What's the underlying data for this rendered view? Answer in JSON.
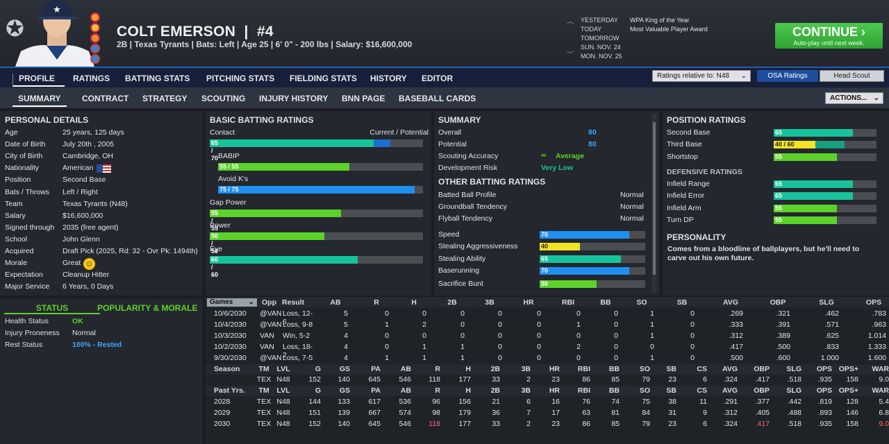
{
  "player": {
    "name": "COLT EMERSON",
    "number": "#4",
    "info": "2B | Texas Tyrants | Bats: Left | Age 25 | 6' 0\" - 200 lbs | Salary: $16,600,000"
  },
  "calendar": {
    "dates": [
      "YESTERDAY",
      "TODAY",
      "TOMORROW",
      "SUN. NOV. 24",
      "MON. NOV. 25"
    ],
    "awards": [
      "WPA King of the Year",
      "Most Valuable Player Award"
    ]
  },
  "continue": {
    "label": "CONTINUE",
    "sub": "Auto-play until next week."
  },
  "nav1": [
    "PROFILE",
    "RATINGS",
    "BATTING STATS",
    "PITCHING STATS",
    "FIELDING STATS",
    "HISTORY",
    "EDITOR"
  ],
  "ratings_relative": "Ratings relative to: N48",
  "osa": "OSA Ratings",
  "scout": "Head Scout",
  "nav2": [
    "SUMMARY",
    "CONTRACT",
    "STRATEGY",
    "SCOUTING",
    "INJURY HISTORY",
    "BNN PAGE",
    "BASEBALL CARDS"
  ],
  "actions": "ACTIONS...",
  "personal": {
    "title": "PERSONAL DETAILS",
    "rows": [
      [
        "Age",
        "25 years, 125 days"
      ],
      [
        "Date of Birth",
        "July 20th , 2005"
      ],
      [
        "City of Birth",
        "Cambridge, OH"
      ],
      [
        "Nationality",
        "American"
      ],
      [
        "Position",
        "Second Base"
      ],
      [
        "Bats / Throws",
        "Left / Right"
      ],
      [
        "Team",
        "Texas Tyrants (N48)"
      ],
      [
        "Salary",
        "$16,600,000"
      ],
      [
        "Signed through",
        "2035 (free agent)"
      ],
      [
        "School",
        "John Glenn"
      ],
      [
        "Acquired",
        "Draft Pick (2025, Rd: 32 - Ovr Pk: 1494th)"
      ],
      [
        "Morale",
        "Great"
      ],
      [
        "Expectation",
        "Cleanup Hitter"
      ],
      [
        "Major Service",
        "6 Years, 0 Days"
      ]
    ]
  },
  "status": {
    "tab1": "STATUS",
    "tab2": "POPULARITY & MORALE",
    "rows": [
      [
        "Health Status",
        "OK"
      ],
      [
        "Injury Proneness",
        "Normal"
      ],
      [
        "Rest Status",
        "100% - Rested"
      ]
    ]
  },
  "batting": {
    "title": "BASIC BATTING RATINGS",
    "cp": "Current / Potential",
    "rows": [
      {
        "label": "Contact",
        "val": "65 / 70",
        "cur": 65,
        "pot": 70,
        "color": "teal",
        "indent": false
      },
      {
        "label": "BABIP",
        "val": "55 / 55",
        "cur": 55,
        "pot": 55,
        "color": "green",
        "indent": true
      },
      {
        "label": "Avoid K's",
        "val": "75 / 75",
        "cur": 75,
        "pot": 75,
        "color": "blue",
        "indent": true
      },
      {
        "label": "Gap Power",
        "val": "55 / 55",
        "cur": 55,
        "pot": 55,
        "color": "green",
        "indent": false
      },
      {
        "label": "Power",
        "val": "50 / 50",
        "cur": 50,
        "pot": 50,
        "color": "green",
        "indent": false
      },
      {
        "label": "Eye",
        "val": "60 / 60",
        "cur": 60,
        "pot": 60,
        "color": "teal",
        "indent": false
      }
    ]
  },
  "summary": {
    "title": "SUMMARY",
    "overall_l": "Overall",
    "overall": "80",
    "potential_l": "Potential",
    "potential": "80",
    "scout_l": "Scouting Accuracy",
    "scout": "Average",
    "dev_l": "Development Risk",
    "dev": "Very Low"
  },
  "other": {
    "title": "OTHER BATTING RATINGS",
    "text": [
      [
        "Batted Ball Profile",
        "Normal"
      ],
      [
        "Groundball Tendency",
        "Normal"
      ],
      [
        "Flyball Tendency",
        "Normal"
      ]
    ],
    "bars": [
      {
        "label": "Speed",
        "val": "70",
        "v": 70,
        "color": "blue"
      },
      {
        "label": "Stealing Aggressiveness",
        "val": "40",
        "v": 40,
        "color": "yellow"
      },
      {
        "label": "Stealing Ability",
        "val": "65",
        "v": 65,
        "color": "teal"
      },
      {
        "label": "Baserunning",
        "val": "70",
        "v": 70,
        "color": "blue"
      },
      {
        "label": "Sacrifice Bunt",
        "val": "50",
        "v": 50,
        "color": "green"
      }
    ]
  },
  "position": {
    "title": "POSITION RATINGS",
    "rows": [
      {
        "label": "Second Base",
        "val": "65",
        "cur": 65,
        "pot": 65,
        "color": "teal"
      },
      {
        "label": "Third Base",
        "val": "40 / 60",
        "cur": 40,
        "pot": 60,
        "color": "yellow"
      },
      {
        "label": "Shortstop",
        "val": "55",
        "cur": 55,
        "pot": 55,
        "color": "green"
      }
    ]
  },
  "defense": {
    "title": "DEFENSIVE RATINGS",
    "rows": [
      {
        "label": "Infield Range",
        "val": "65",
        "v": 65,
        "color": "teal"
      },
      {
        "label": "Infield Error",
        "val": "65",
        "v": 65,
        "color": "teal"
      },
      {
        "label": "Infield Arm",
        "val": "55",
        "v": 55,
        "color": "green"
      },
      {
        "label": "Turn DP",
        "val": "55",
        "v": 55,
        "color": "green"
      }
    ]
  },
  "personality": {
    "title": "PERSONALITY",
    "text": "Comes from a bloodline of ballplayers, but he'll need to carve out his own future."
  },
  "games": {
    "dropdown": "Games",
    "headers": [
      "Opp",
      "Result",
      "AB",
      "R",
      "H",
      "2B",
      "3B",
      "HR",
      "RBI",
      "BB",
      "SO",
      "SB",
      "AVG",
      "OBP",
      "SLG",
      "OPS"
    ],
    "rows": [
      [
        "10/6/2030",
        "@VAN",
        "Loss, 12-6",
        "5",
        "0",
        "0",
        "0",
        "0",
        "0",
        "0",
        "0",
        "1",
        "0",
        ".269",
        ".321",
        ".462",
        ".783"
      ],
      [
        "10/4/2030",
        "@VAN",
        "Loss, 9-8",
        "5",
        "1",
        "2",
        "0",
        "0",
        "0",
        "1",
        "0",
        "1",
        "0",
        ".333",
        ".391",
        ".571",
        ".963"
      ],
      [
        "10/3/2030",
        "VAN",
        "Win, 5-2",
        "4",
        "0",
        "0",
        "0",
        "0",
        "0",
        "0",
        "0",
        "1",
        "0",
        ".312",
        ".389",
        ".625",
        "1.014"
      ],
      [
        "10/2/2030",
        "VAN",
        "Loss, 18-2",
        "4",
        "0",
        "1",
        "1",
        "0",
        "0",
        "2",
        "0",
        "0",
        "0",
        ".417",
        ".500",
        ".833",
        "1.333"
      ],
      [
        "9/30/2030",
        "@VAN",
        "Loss, 7-5",
        "4",
        "1",
        "1",
        "1",
        "0",
        "0",
        "0",
        "0",
        "1",
        "0",
        ".500",
        ".600",
        "1.000",
        "1.600"
      ]
    ]
  },
  "season": {
    "headers": [
      "Season",
      "TM",
      "LVL",
      "G",
      "GS",
      "PA",
      "AB",
      "R",
      "H",
      "2B",
      "3B",
      "HR",
      "RBI",
      "BB",
      "SO",
      "SB",
      "CS",
      "AVG",
      "OBP",
      "SLG",
      "OPS",
      "OPS+",
      "WAR"
    ],
    "row": [
      "",
      "TEX",
      "N48",
      "152",
      "140",
      "645",
      "546",
      "118",
      "177",
      "33",
      "2",
      "23",
      "86",
      "85",
      "79",
      "23",
      "6",
      ".324",
      ".417",
      ".518",
      ".935",
      "158",
      "9.0"
    ]
  },
  "past": {
    "headers": [
      "Past Yrs.",
      "TM",
      "LVL",
      "G",
      "GS",
      "PA",
      "AB",
      "R",
      "H",
      "2B",
      "3B",
      "HR",
      "RBI",
      "BB",
      "SO",
      "SB",
      "CS",
      "AVG",
      "OBP",
      "SLG",
      "OPS",
      "OPS+",
      "WAR"
    ],
    "rows": [
      [
        "2028",
        "TEX",
        "N48",
        "144",
        "133",
        "617",
        "536",
        "96",
        "156",
        "21",
        "6",
        "16",
        "76",
        "74",
        "75",
        "38",
        "11",
        ".291",
        ".377",
        ".442",
        ".819",
        "128",
        "5.4"
      ],
      [
        "2029",
        "TEX",
        "N48",
        "151",
        "139",
        "667",
        "574",
        "98",
        "179",
        "36",
        "7",
        "17",
        "63",
        "81",
        "84",
        "31",
        "9",
        ".312",
        ".405",
        ".488",
        ".893",
        "146",
        "6.8"
      ],
      [
        "2030",
        "TEX",
        "N48",
        "152",
        "140",
        "645",
        "546",
        "118",
        "177",
        "33",
        "2",
        "23",
        "86",
        "85",
        "79",
        "23",
        "6",
        ".324",
        ".417",
        ".518",
        ".935",
        "158",
        "9.0"
      ]
    ]
  },
  "colors": {
    "teal": "#17c39b",
    "green": "#5dd22a",
    "blue": "#1f8ff0",
    "yellow": "#f2e325",
    "accent": "#2a5ab0"
  }
}
